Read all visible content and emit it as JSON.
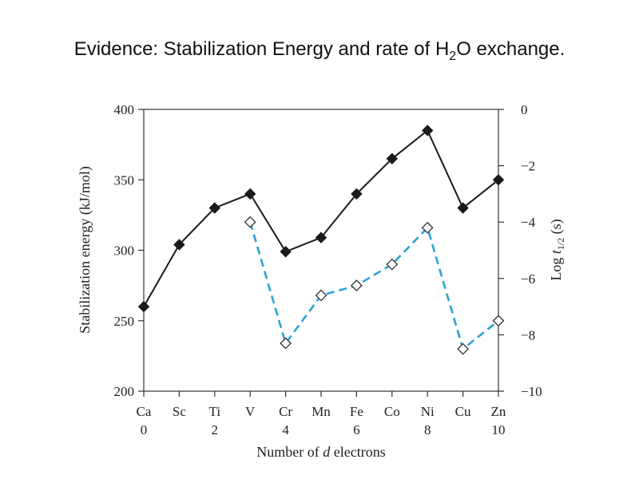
{
  "title": {
    "prefix": "Evidence: Stabilization Energy and rate of H",
    "subscript": "2",
    "suffix": "O exchange."
  },
  "chart_data": {
    "type": "line",
    "x": [
      0,
      1,
      2,
      3,
      4,
      5,
      6,
      7,
      8,
      9,
      10
    ],
    "categories": [
      "Ca",
      "Sc",
      "Ti",
      "V",
      "Cr",
      "Mn",
      "Fe",
      "Co",
      "Ni",
      "Cu",
      "Zn"
    ],
    "x_tick_labels": {
      "0": "0",
      "2": "2",
      "4": "4",
      "6": "6",
      "8": "8",
      "10": "10"
    },
    "xlabel_parts": [
      "Number of ",
      "d",
      " electrons"
    ],
    "ylabel": "Stabilization energy (kJ/mol)",
    "ylim": [
      200,
      400
    ],
    "y_ticks": [
      200,
      250,
      300,
      350,
      400
    ],
    "y2label_parts": [
      "Log ",
      "t",
      "1/2",
      " (s)"
    ],
    "y2lim": [
      -10,
      0
    ],
    "y2_ticks": [
      0,
      -2,
      -4,
      -6,
      -8,
      -10
    ],
    "y2_tick_labels": [
      "0",
      "−2",
      "−4",
      "−6",
      "−8",
      "−10"
    ],
    "grid": false,
    "series": [
      {
        "axis": "left",
        "style": "solid",
        "marker": "filled-diamond",
        "color": "#1a1a1a",
        "x": [
          0,
          1,
          2,
          3,
          4,
          5,
          6,
          7,
          8,
          9,
          10
        ],
        "values": [
          260,
          304,
          330,
          340,
          299,
          309,
          340,
          365,
          385,
          330,
          350
        ]
      },
      {
        "axis": "right",
        "style": "dashed",
        "marker": "open-diamond",
        "color": "#2ba3d6",
        "x": [
          3,
          4,
          5,
          6,
          7,
          8,
          9,
          10
        ],
        "values": [
          -4.0,
          -8.3,
          -6.6,
          -6.25,
          -5.5,
          -4.2,
          -8.5,
          -7.5
        ]
      }
    ]
  }
}
